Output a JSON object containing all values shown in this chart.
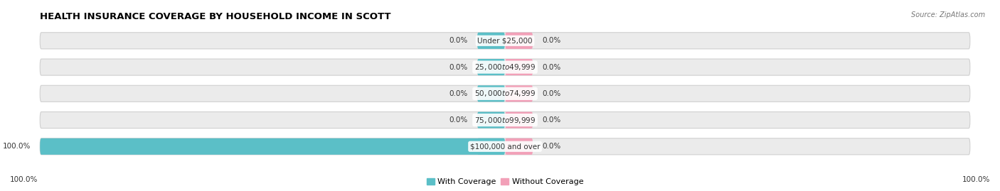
{
  "title": "HEALTH INSURANCE COVERAGE BY HOUSEHOLD INCOME IN SCOTT",
  "source": "Source: ZipAtlas.com",
  "categories": [
    "Under $25,000",
    "$25,000 to $49,999",
    "$50,000 to $74,999",
    "$75,000 to $99,999",
    "$100,000 and over"
  ],
  "with_coverage": [
    0.0,
    0.0,
    0.0,
    0.0,
    100.0
  ],
  "without_coverage": [
    0.0,
    0.0,
    0.0,
    0.0,
    0.0
  ],
  "color_with": "#5bbfc7",
  "color_without": "#f2a0b8",
  "bar_bg_color": "#ebebeb",
  "bar_border_color": "#d0d0d0",
  "bar_height": 0.62,
  "label_left_text": "100.0%",
  "label_right_text": "100.0%",
  "legend_with": "With Coverage",
  "legend_without": "Without Coverage",
  "title_fontsize": 9.5,
  "source_fontsize": 7,
  "label_fontsize": 7.5,
  "cat_fontsize": 7.5
}
